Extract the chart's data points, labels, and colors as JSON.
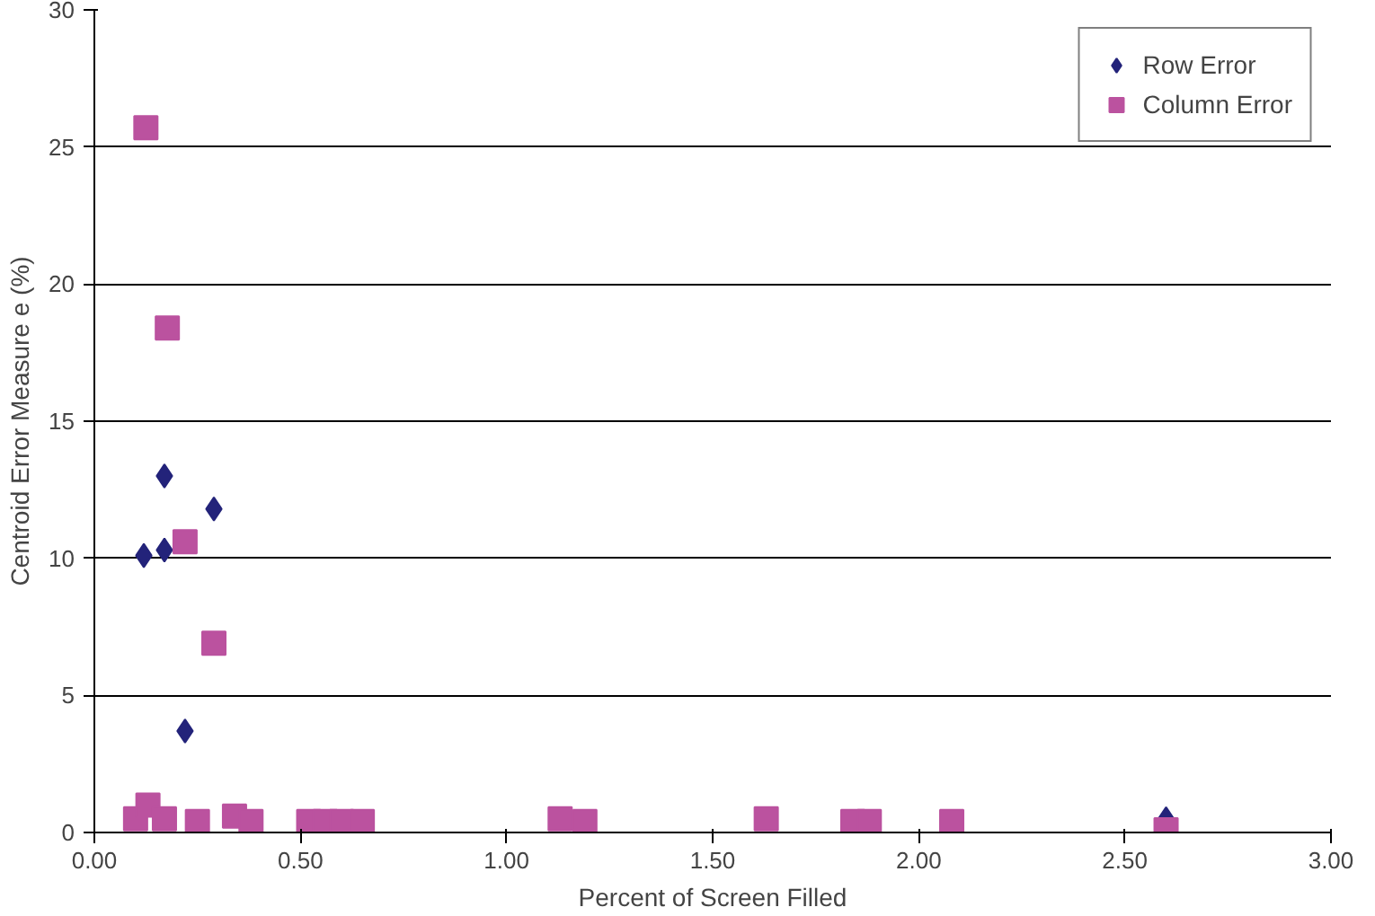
{
  "chart_data": {
    "type": "scatter",
    "xlabel": "Percent of Screen Filled",
    "ylabel": "Centroid Error Measure e (%)",
    "xlim": [
      0,
      3
    ],
    "xticks": [
      {
        "value": 0,
        "label": "0.00"
      },
      {
        "value": 0.5,
        "label": "0.50"
      },
      {
        "value": 1,
        "label": "1.00"
      },
      {
        "value": 1.5,
        "label": "1.50"
      },
      {
        "value": 2,
        "label": "2.00"
      },
      {
        "value": 2.5,
        "label": "2.50"
      },
      {
        "value": 3,
        "label": "3.00"
      }
    ],
    "ylim": [
      0,
      30
    ],
    "yticks": [
      0,
      5,
      10,
      15,
      20,
      25,
      30
    ],
    "grid": "y",
    "legend": "top right",
    "series": [
      {
        "name": "Row Error",
        "color": "#23237a",
        "marker": "diamond",
        "x": [
          0.12,
          0.17,
          0.17,
          0.29,
          0.22,
          2.6
        ],
        "values": [
          10.1,
          10.3,
          13.0,
          11.8,
          3.7,
          0.5
        ]
      },
      {
        "name": "Column Error",
        "color": "#bb529f",
        "marker": "square",
        "x": [
          0.125,
          0.177,
          0.22,
          0.29,
          0.1,
          0.13,
          0.17,
          0.25,
          0.34,
          0.38,
          0.52,
          0.56,
          0.6,
          0.65,
          1.13,
          1.19,
          1.63,
          1.84,
          1.88,
          2.08,
          2.6
        ],
        "values": [
          25.7,
          18.4,
          10.6,
          6.9,
          0.5,
          1.0,
          0.5,
          0.4,
          0.6,
          0.4,
          0.4,
          0.4,
          0.4,
          0.4,
          0.5,
          0.4,
          0.5,
          0.4,
          0.4,
          0.4,
          0.1
        ]
      }
    ]
  }
}
